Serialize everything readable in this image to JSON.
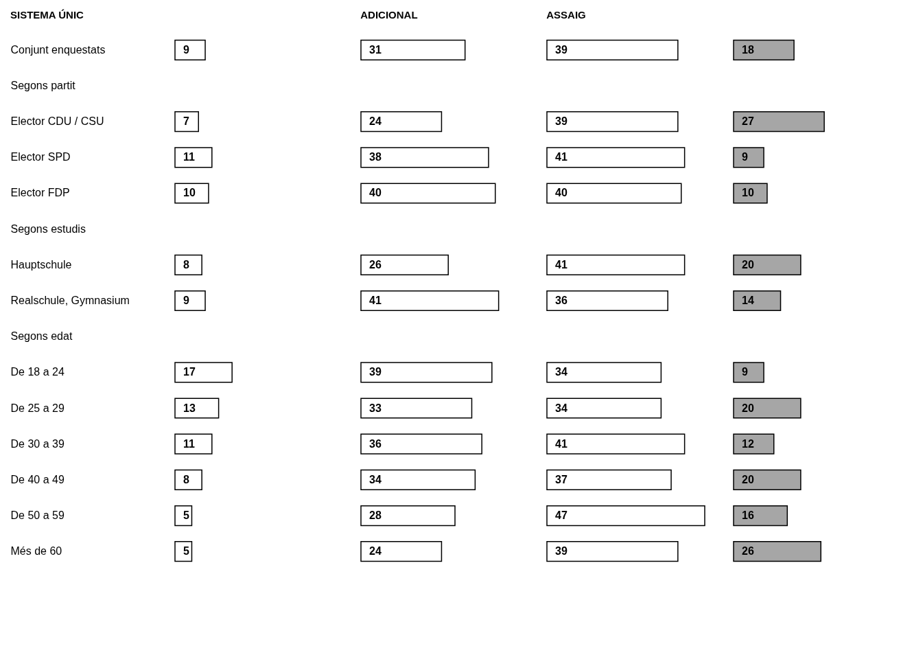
{
  "chart_data": [
    {
      "type": "bar",
      "orientation": "horizontal",
      "title": "SISTEMA ÚNIC",
      "data_labels": true,
      "tick_labels": "y",
      "grid": false,
      "categories": [
        "Conjunt enquestats",
        "Segons  partit",
        "Elector  CDU / CSU",
        "Elector  SPD",
        "Elector  FDP",
        "Segons  estudis",
        "Hauptschule",
        "Realschule, Gymnasium",
        "Segons  edat",
        "De 18 a 24",
        "De 25 a 29",
        "De 30 a 39",
        "De 40 a 49",
        "De 50 a 59",
        "Més de 60"
      ],
      "series": [
        {
          "color": "#ffffff",
          "values": [
            9,
            null,
            7,
            11,
            10,
            null,
            8,
            9,
            null,
            17,
            13,
            11,
            8,
            5,
            5
          ]
        }
      ]
    },
    {
      "type": "bar",
      "orientation": "horizontal",
      "title": "ADICIONAL",
      "data_labels": true,
      "tick_labels": false,
      "grid": false,
      "categories": [
        null,
        null,
        null,
        null,
        null,
        null,
        null,
        null,
        null,
        null,
        null,
        null,
        null,
        null,
        null
      ],
      "series": [
        {
          "color": "#ffffff",
          "values": [
            31,
            null,
            24,
            38,
            40,
            null,
            26,
            41,
            null,
            39,
            33,
            36,
            34,
            28,
            24
          ]
        }
      ]
    },
    {
      "type": "bar",
      "orientation": "horizontal",
      "title": "ASSAIG",
      "data_labels": true,
      "tick_labels": false,
      "grid": false,
      "categories": [
        null,
        null,
        null,
        null,
        null,
        null,
        null,
        null,
        null,
        null,
        null,
        null,
        null,
        null,
        null
      ],
      "series": [
        {
          "color": "#ffffff",
          "values": [
            39,
            null,
            39,
            41,
            40,
            null,
            41,
            36,
            null,
            34,
            34,
            41,
            37,
            47,
            39
          ]
        }
      ]
    },
    {
      "type": "bar",
      "orientation": "horizontal",
      "data_labels": true,
      "tick_labels": false,
      "grid": false,
      "categories": [
        null,
        null,
        null,
        null,
        null,
        null,
        null,
        null,
        null,
        null,
        null,
        null,
        null,
        null,
        null
      ],
      "series": [
        {
          "color": "#a6a6a6",
          "values": [
            18,
            null,
            27,
            9,
            10,
            null,
            20,
            14,
            null,
            9,
            20,
            12,
            20,
            16,
            26
          ]
        }
      ]
    }
  ]
}
